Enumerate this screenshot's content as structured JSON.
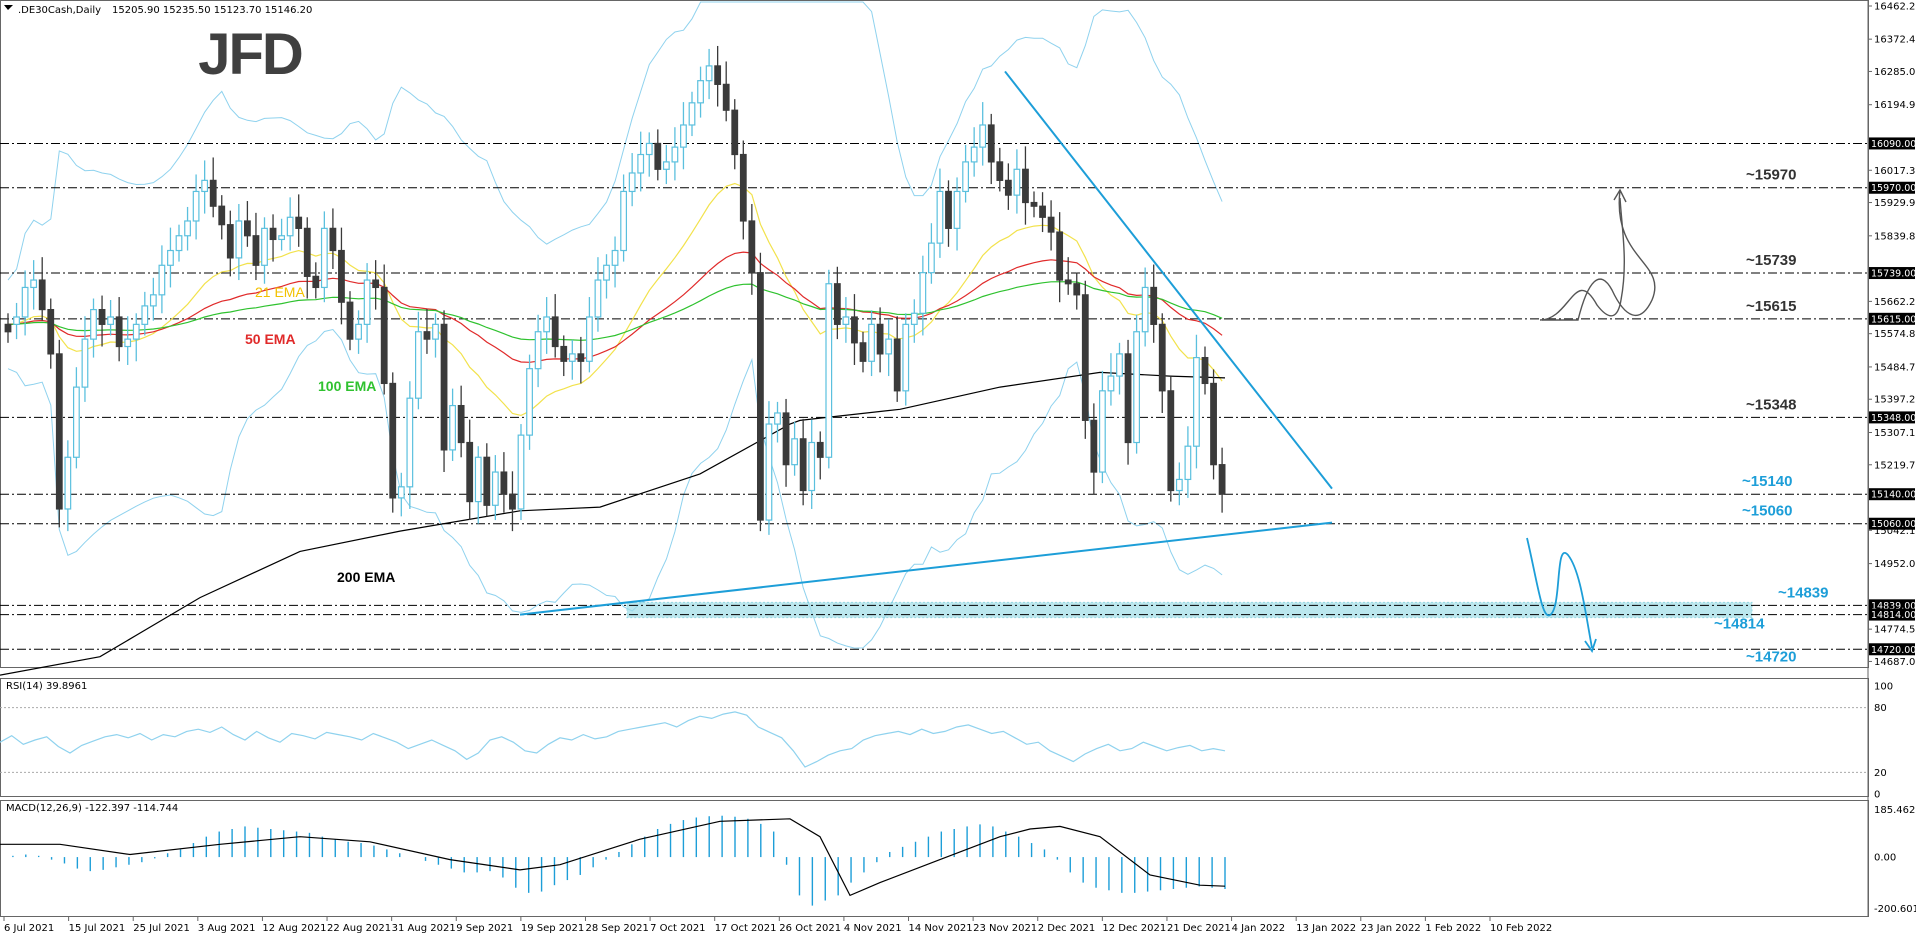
{
  "header": {
    "symbol": ".DE30Cash,Daily",
    "ohlc": "15205.90 15235.50 15123.70 15146.20",
    "logo": "JFD"
  },
  "colors": {
    "bull": "#5bc0de",
    "bear": "#3a3a3a",
    "ema21": "#f2e24c",
    "ema50": "#e02a2a",
    "ema100": "#2fc22f",
    "ema200": "#000000",
    "bollinger": "#8fd2ee",
    "trend": "#1d9ed8",
    "level_box": "#000000",
    "zone": "#9fdde8"
  },
  "chart_data": [
    {
      "type": "candlestick",
      "panel": "price",
      "title": ".DE30Cash,Daily",
      "x_ticks": [
        "6 Jul 2021",
        "15 Jul 2021",
        "25 Jul 2021",
        "3 Aug 2021",
        "12 Aug 2021",
        "22 Aug 2021",
        "31 Aug 2021",
        "9 Sep 2021",
        "19 Sep 2021",
        "28 Sep 2021",
        "7 Oct 2021",
        "17 Oct 2021",
        "26 Oct 2021",
        "4 Nov 2021",
        "14 Nov 2021",
        "23 Nov 2021",
        "2 Dec 2021",
        "12 Dec 2021",
        "21 Dec 2021",
        "4 Jan 2022",
        "13 Jan 2022",
        "23 Jan 2022",
        "1 Feb 2022",
        "10 Feb 2022"
      ],
      "y_ticks": [
        "16462.25",
        "16372.45",
        "16285.00",
        "16194.90",
        "16017.35",
        "15929.95",
        "15839.80",
        "15662.25",
        "15574.80",
        "15484.70",
        "15397.25",
        "15307.15",
        "15219.70",
        "15042.15",
        "14952.05",
        "14774.50",
        "14687.05"
      ],
      "ylim": [
        14672,
        16462.25
      ],
      "close": [
        15600,
        15620,
        15700,
        15720,
        15640,
        15520,
        15100,
        15240,
        15430,
        15560,
        15640,
        15600,
        15620,
        15540,
        15560,
        15600,
        15650,
        15680,
        15760,
        15800,
        15840,
        15880,
        15960,
        15990,
        15920,
        15870,
        15780,
        15880,
        15840,
        15760,
        15860,
        15830,
        15840,
        15890,
        15860,
        15730,
        15700,
        15860,
        15800,
        15660,
        15560,
        15600,
        15720,
        15700,
        15440,
        15130,
        15160,
        15400,
        15580,
        15560,
        15600,
        15260,
        15380,
        15280,
        15120,
        15240,
        15110,
        15200,
        15140,
        15100,
        15300,
        15480,
        15580,
        15620,
        15540,
        15500,
        15520,
        15500,
        15620,
        15720,
        15760,
        15800,
        15960,
        16010,
        16060,
        16090,
        16020,
        16040,
        16080,
        16140,
        16200,
        16260,
        16300,
        16250,
        16180,
        16060,
        15880,
        15740,
        15070,
        15330,
        15360,
        15220,
        15290,
        15150,
        15280,
        15240,
        15710,
        15600,
        15620,
        15550,
        15500,
        15600,
        15520,
        15560,
        15420,
        15600,
        15630,
        15740,
        15820,
        15960,
        15860,
        15960,
        16040,
        16080,
        16140,
        16040,
        15990,
        15950,
        16020,
        15930,
        15920,
        15890,
        15850,
        15720,
        15710,
        15680,
        15340,
        15200,
        15420,
        15460,
        15520,
        15280,
        15580,
        15700,
        15600,
        15420,
        15150,
        15180,
        15270,
        15510,
        15440,
        15220,
        15140
      ],
      "bull": [
        false,
        true,
        true,
        true,
        false,
        false,
        false,
        true,
        true,
        true,
        true,
        false,
        true,
        false,
        true,
        true,
        true,
        true,
        true,
        true,
        true,
        true,
        true,
        true,
        false,
        false,
        false,
        true,
        false,
        false,
        true,
        false,
        true,
        true,
        false,
        false,
        false,
        true,
        false,
        false,
        false,
        true,
        true,
        false,
        false,
        false,
        true,
        true,
        true,
        false,
        true,
        false,
        true,
        false,
        false,
        true,
        false,
        true,
        false,
        false,
        true,
        true,
        true,
        true,
        false,
        false,
        true,
        false,
        true,
        true,
        true,
        true,
        true,
        true,
        true,
        true,
        false,
        true,
        true,
        true,
        true,
        true,
        true,
        false,
        false,
        false,
        false,
        false,
        false,
        true,
        true,
        false,
        true,
        false,
        true,
        false,
        true,
        false,
        true,
        false,
        false,
        true,
        false,
        true,
        false,
        true,
        true,
        true,
        true,
        true,
        false,
        true,
        true,
        true,
        true,
        false,
        false,
        false,
        true,
        false,
        false,
        false,
        false,
        false,
        false,
        false,
        false,
        false,
        true,
        true,
        true,
        false,
        true,
        true,
        false,
        false,
        false,
        true,
        true,
        true,
        false,
        false,
        false
      ],
      "indicators": [
        "21 EMA",
        "50 EMA",
        "100 EMA",
        "200 EMA"
      ],
      "ema200_path": [
        [
          0,
          14650
        ],
        [
          100,
          14700
        ],
        [
          200,
          14860
        ],
        [
          300,
          14985
        ],
        [
          400,
          15040
        ],
        [
          520,
          15095
        ],
        [
          600,
          15105
        ],
        [
          700,
          15195
        ],
        [
          790,
          15330
        ],
        [
          800,
          15340
        ],
        [
          900,
          15370
        ],
        [
          1000,
          15430
        ],
        [
          1100,
          15470
        ],
        [
          1170,
          15460
        ],
        [
          1225,
          15455
        ]
      ],
      "levels": [
        "16090.00",
        "15970.00",
        "15739.00",
        "15615.00",
        "15348.00",
        "15140.00",
        "15060.00",
        "14839.00",
        "14814.00",
        "14720.00"
      ],
      "level_labels": [
        "~15970",
        "~15739",
        "~15615",
        "~15348",
        "~15140",
        "~15060",
        "~14839",
        "~14814",
        "~14720"
      ],
      "trendlines": {
        "down": [
          [
            1005,
            16285
          ],
          [
            1332,
            15155
          ]
        ],
        "up": [
          [
            520,
            14814
          ],
          [
            1332,
            15063
          ]
        ]
      }
    },
    {
      "type": "line",
      "panel": "rsi",
      "title": "RSI(14) 39.8961",
      "y_ticks": [
        "100",
        "80",
        "20",
        "0"
      ],
      "ylim": [
        0,
        100
      ],
      "grid": [
        80,
        20
      ],
      "values": [
        48,
        54,
        46,
        50,
        53,
        44,
        38,
        45,
        49,
        53,
        55,
        52,
        56,
        50,
        55,
        53,
        58,
        60,
        57,
        62,
        55,
        50,
        58,
        52,
        48,
        56,
        54,
        51,
        57,
        55,
        53,
        50,
        56,
        52,
        48,
        42,
        46,
        50,
        45,
        40,
        32,
        38,
        50,
        53,
        48,
        40,
        38,
        46,
        52,
        50,
        55,
        51,
        53,
        58,
        60,
        62,
        64,
        66,
        62,
        68,
        72,
        70,
        74,
        76,
        73,
        62,
        57,
        52,
        40,
        25,
        30,
        36,
        40,
        42,
        50,
        54,
        56,
        58,
        55,
        60,
        56,
        58,
        62,
        64,
        60,
        56,
        58,
        52,
        46,
        48,
        40,
        35,
        30,
        37,
        42,
        46,
        40,
        42,
        48,
        44,
        40,
        43,
        45,
        40,
        42,
        40
      ]
    },
    {
      "type": "bar+line",
      "panel": "macd",
      "title": "MACD(12,26,9) -122.397 -114.744",
      "y_ticks": [
        "185.462",
        "0.00",
        "-200.601"
      ],
      "ylim": [
        -215,
        200
      ],
      "histogram": [
        0,
        5,
        10,
        5,
        -10,
        -25,
        -45,
        -55,
        -50,
        -40,
        -30,
        -20,
        -5,
        15,
        30,
        55,
        80,
        100,
        110,
        120,
        115,
        110,
        105,
        100,
        95,
        80,
        70,
        60,
        55,
        45,
        30,
        15,
        0,
        -15,
        -30,
        -45,
        -60,
        -60,
        -55,
        -80,
        -120,
        -140,
        -135,
        -110,
        -90,
        -70,
        -40,
        -10,
        20,
        50,
        80,
        110,
        130,
        145,
        155,
        160,
        162,
        158,
        150,
        130,
        100,
        -30,
        -150,
        -190,
        -170,
        -150,
        -100,
        -60,
        -20,
        20,
        40,
        60,
        80,
        100,
        110,
        120,
        128,
        120,
        100,
        80,
        55,
        30,
        -10,
        -60,
        -100,
        -120,
        -130,
        -140,
        -140,
        -135,
        -130,
        -125,
        -120,
        -115,
        -120,
        -125
      ],
      "signal_path": [
        [
          0,
          50
        ],
        [
          60,
          50
        ],
        [
          130,
          10
        ],
        [
          220,
          50
        ],
        [
          300,
          80
        ],
        [
          370,
          60
        ],
        [
          450,
          -10
        ],
        [
          520,
          -50
        ],
        [
          560,
          -30
        ],
        [
          640,
          70
        ],
        [
          720,
          140
        ],
        [
          790,
          150
        ],
        [
          820,
          80
        ],
        [
          850,
          -150
        ],
        [
          880,
          -100
        ],
        [
          940,
          -10
        ],
        [
          1000,
          80
        ],
        [
          1030,
          110
        ],
        [
          1060,
          120
        ],
        [
          1100,
          80
        ],
        [
          1150,
          -70
        ],
        [
          1200,
          -110
        ],
        [
          1225,
          -114
        ]
      ]
    }
  ],
  "annotations": {
    "ema21": "21 EMA",
    "ema50": "50 EMA",
    "ema100": "100 EMA",
    "ema200": "200 EMA"
  }
}
